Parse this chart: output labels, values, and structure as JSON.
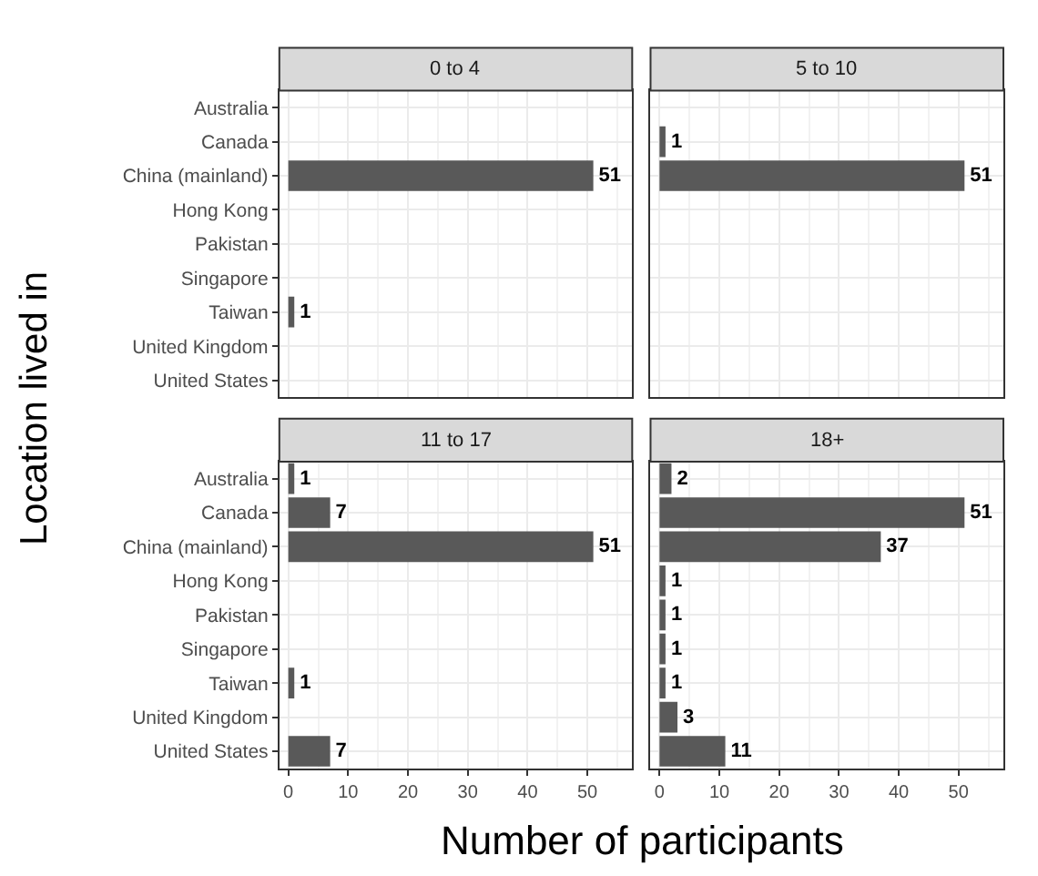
{
  "chart_data": [
    {
      "type": "bar",
      "orientation": "horizontal",
      "title": "0 to 4",
      "xlabel": "Number of participants",
      "ylabel": "Location lived in",
      "categories": [
        "Australia",
        "Canada",
        "China (mainland)",
        "Hong Kong",
        "Pakistan",
        "Singapore",
        "Taiwan",
        "United Kingdom",
        "United States"
      ],
      "values": [
        0,
        0,
        51,
        0,
        0,
        0,
        1,
        0,
        0
      ],
      "value_labels": [
        null,
        null,
        "51",
        null,
        null,
        null,
        "1",
        null,
        null
      ],
      "color": "#595959",
      "xlim": [
        -1.5,
        57.5
      ],
      "xticks": [
        0,
        10,
        20,
        30,
        40,
        50
      ],
      "grid": true,
      "tick_labels": "y"
    },
    {
      "type": "bar",
      "orientation": "horizontal",
      "title": "5 to 10",
      "categories": [
        "Australia",
        "Canada",
        "China (mainland)",
        "Hong Kong",
        "Pakistan",
        "Singapore",
        "Taiwan",
        "United Kingdom",
        "United States"
      ],
      "values": [
        0,
        1,
        51,
        0,
        0,
        0,
        0,
        0,
        0
      ],
      "value_labels": [
        null,
        "1",
        "51",
        null,
        null,
        null,
        null,
        null,
        null
      ],
      "color": "#595959",
      "xlim": [
        -1.5,
        57.5
      ],
      "xticks": [
        0,
        10,
        20,
        30,
        40,
        50
      ],
      "grid": true,
      "tick_labels": false
    },
    {
      "type": "bar",
      "orientation": "horizontal",
      "title": "11 to 17",
      "categories": [
        "Australia",
        "Canada",
        "China (mainland)",
        "Hong Kong",
        "Pakistan",
        "Singapore",
        "Taiwan",
        "United Kingdom",
        "United States"
      ],
      "values": [
        1,
        7,
        51,
        0,
        0,
        0,
        1,
        0,
        7
      ],
      "value_labels": [
        "1",
        "7",
        "51",
        null,
        null,
        null,
        "1",
        null,
        "7"
      ],
      "color": "#595959",
      "xlim": [
        -1.5,
        57.5
      ],
      "xticks": [
        0,
        10,
        20,
        30,
        40,
        50
      ],
      "grid": true
    },
    {
      "type": "bar",
      "orientation": "horizontal",
      "title": "18+",
      "categories": [
        "Australia",
        "Canada",
        "China (mainland)",
        "Hong Kong",
        "Pakistan",
        "Singapore",
        "Taiwan",
        "United Kingdom",
        "United States"
      ],
      "values": [
        2,
        51,
        37,
        1,
        1,
        1,
        1,
        3,
        11
      ],
      "value_labels": [
        "2",
        "51",
        "37",
        "1",
        "1",
        "1",
        "1",
        "3",
        "11"
      ],
      "color": "#595959",
      "xlim": [
        -1.5,
        57.5
      ],
      "xticks": [
        0,
        10,
        20,
        30,
        40,
        50
      ],
      "grid": true,
      "tick_labels": "x"
    }
  ]
}
